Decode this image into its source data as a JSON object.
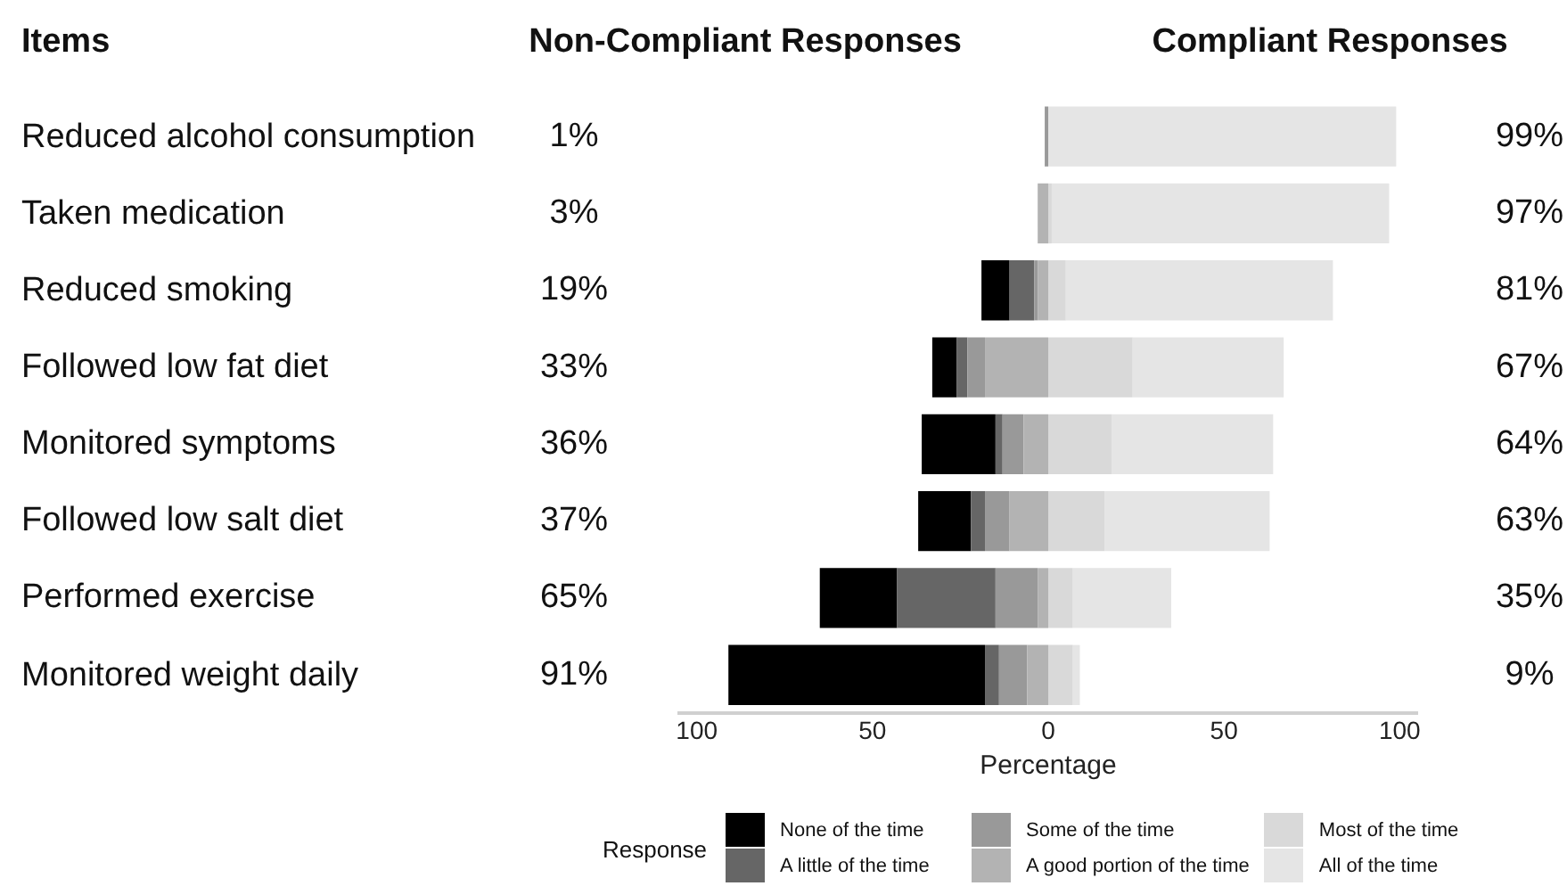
{
  "chart_data": {
    "type": "bar",
    "orientation": "horizontal",
    "stacked": true,
    "ylabel": "Items",
    "xlabel": "Percentage",
    "legend": "bottom",
    "legend_title": "Response",
    "grid": false,
    "categories": [
      "Reduced alcohol consumption",
      "Taken medication",
      "Reduced smoking",
      "Followed low fat diet",
      "Monitored symptoms",
      "Followed low salt diet",
      "Performed exercise",
      "Monitored weight daily"
    ],
    "xlim": [
      -105,
      105
    ],
    "xticks": [
      {
        "value": -100,
        "label": "100"
      },
      {
        "value": -50,
        "label": "50"
      },
      {
        "value": 0,
        "label": "0"
      },
      {
        "value": 50,
        "label": "50"
      },
      {
        "value": 100,
        "label": "100"
      }
    ],
    "series": [
      {
        "name": "A good portion of the time",
        "color": "#b3b3b3",
        "values": [
          0,
          -3,
          -3,
          -18,
          -7,
          -11,
          -3,
          -6
        ]
      },
      {
        "name": "Some of the time",
        "color": "#999999",
        "values": [
          -1,
          0,
          -1,
          -5,
          -6,
          -7,
          -12,
          -8
        ]
      },
      {
        "name": "A little of the time",
        "color": "#666666",
        "values": [
          0,
          0,
          -7,
          -3,
          -2,
          -4,
          -28,
          -4
        ]
      },
      {
        "name": "None of the time",
        "color": "#000000",
        "values": [
          0,
          0,
          -8,
          -7,
          -21,
          -15,
          -22,
          -73
        ]
      },
      {
        "name": "Most of the time",
        "color": "#d9d9d9",
        "values": [
          0,
          1,
          5,
          24,
          18,
          16,
          7,
          7
        ]
      },
      {
        "name": "All of the time",
        "color": "#e5e5e5",
        "values": [
          99,
          96,
          76,
          43,
          46,
          47,
          28,
          2
        ]
      }
    ],
    "annotations": [
      "Non-Compliant Responses",
      "Compliant Responses",
      "1%",
      "3%",
      "19%",
      "33%",
      "36%",
      "37%",
      "65%",
      "91%",
      "99%",
      "97%",
      "81%",
      "67%",
      "64%",
      "63%",
      "35%",
      "9%"
    ]
  }
}
